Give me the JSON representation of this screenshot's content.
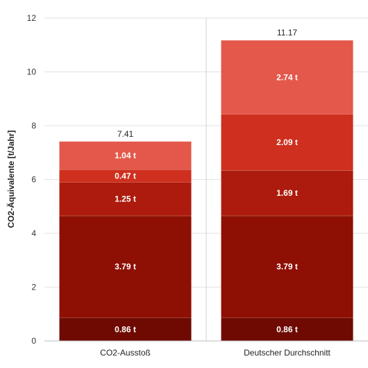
{
  "chart_data": {
    "type": "bar",
    "stacked": true,
    "ylabel": "CO2-Äquivalente [t/Jahr]",
    "ylim": [
      0,
      12
    ],
    "yticks": [
      "0",
      "2",
      "4",
      "6",
      "8",
      "10",
      "12"
    ],
    "grid": true,
    "categories": [
      "CO2-Ausstoß",
      "Deutscher Durchschnitt"
    ],
    "totals": [
      "7.41",
      "11.17"
    ],
    "series": [
      {
        "values": [
          0.86,
          0.86
        ],
        "labels": [
          "0.86 t",
          "0.86 t"
        ],
        "color": "#6e0a02"
      },
      {
        "values": [
          3.79,
          3.79
        ],
        "labels": [
          "3.79 t",
          "3.79 t"
        ],
        "color": "#8e0f03"
      },
      {
        "values": [
          1.25,
          1.69
        ],
        "labels": [
          "1.25 t",
          "1.69 t"
        ],
        "color": "#ac1b0d"
      },
      {
        "values": [
          0.47,
          2.09
        ],
        "labels": [
          "0.47 t",
          "2.09 t"
        ],
        "color": "#cf2f1e"
      },
      {
        "values": [
          1.04,
          2.74
        ],
        "labels": [
          "1.04 t",
          "2.74 t"
        ],
        "color": "#e3584a"
      }
    ]
  }
}
